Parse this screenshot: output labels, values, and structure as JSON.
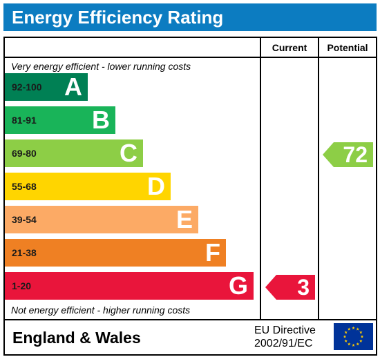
{
  "header": {
    "title": "Energy Efficiency Rating"
  },
  "columns": {
    "current": "Current",
    "potential": "Potential"
  },
  "notes": {
    "top": "Very energy efficient - lower running costs",
    "bottom": "Not energy efficient - higher running costs"
  },
  "chart_data": {
    "type": "bar",
    "title": "Energy Efficiency Rating",
    "bands": [
      {
        "letter": "A",
        "range": "92-100",
        "color": "#008054"
      },
      {
        "letter": "B",
        "range": "81-91",
        "color": "#19b459"
      },
      {
        "letter": "C",
        "range": "69-80",
        "color": "#8dce46"
      },
      {
        "letter": "D",
        "range": "55-68",
        "color": "#ffd500"
      },
      {
        "letter": "E",
        "range": "39-54",
        "color": "#fcaa65"
      },
      {
        "letter": "F",
        "range": "21-38",
        "color": "#ef8023"
      },
      {
        "letter": "G",
        "range": "1-20",
        "color": "#e9153b"
      }
    ],
    "current": {
      "value": "3",
      "band": "G",
      "color": "#e9153b"
    },
    "potential": {
      "value": "72",
      "band": "C",
      "color": "#8dce46"
    }
  },
  "footer": {
    "region": "England & Wales",
    "directive_line1": "EU Directive",
    "directive_line2": "2002/91/EC"
  }
}
